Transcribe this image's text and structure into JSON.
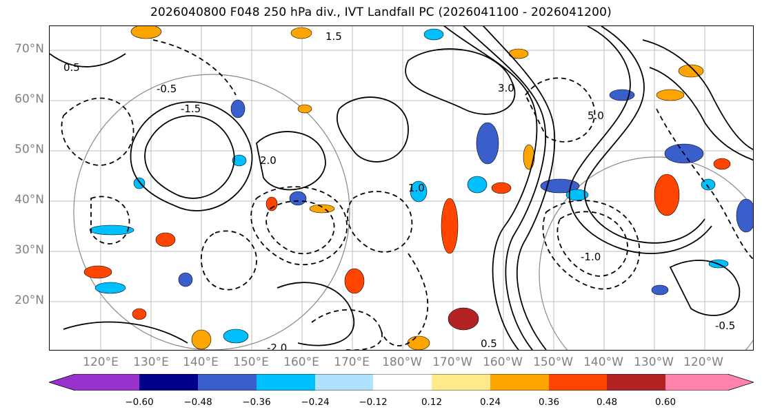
{
  "title": "2026040800 F048 250 hPa div., IVT Landfall PC (2026041100 - 2026041200)",
  "map": {
    "lat_labels": [
      "70°N",
      "60°N",
      "50°N",
      "40°N",
      "30°N",
      "20°N"
    ],
    "lon_labels": [
      "120°E",
      "130°E",
      "140°E",
      "150°E",
      "160°E",
      "170°E",
      "180°W",
      "170°W",
      "160°W",
      "150°W",
      "140°W",
      "130°W",
      "120°W"
    ],
    "contour_labels": [
      "-1.5",
      "-0.5",
      "0.5",
      "1.0",
      "-1.0",
      "3.0",
      "2.0",
      "-2.0",
      "5.0",
      "1.5",
      "-0.5",
      "0.5"
    ],
    "grid_color": "#bdbdbd",
    "contour_color": "#000000"
  },
  "colorbar": {
    "colors": [
      "#9932cc",
      "#00008b",
      "#3a5fcd",
      "#00bfff",
      "#b0e2ff",
      "#ffffff",
      "#ffe98a",
      "#ffa500",
      "#ff4500",
      "#b22222",
      "#ff82ab"
    ],
    "tick_labels": [
      "−0.60",
      "−0.48",
      "−0.36",
      "−0.24",
      "−0.12",
      "0.12",
      "0.24",
      "0.36",
      "0.48",
      "0.60"
    ]
  }
}
